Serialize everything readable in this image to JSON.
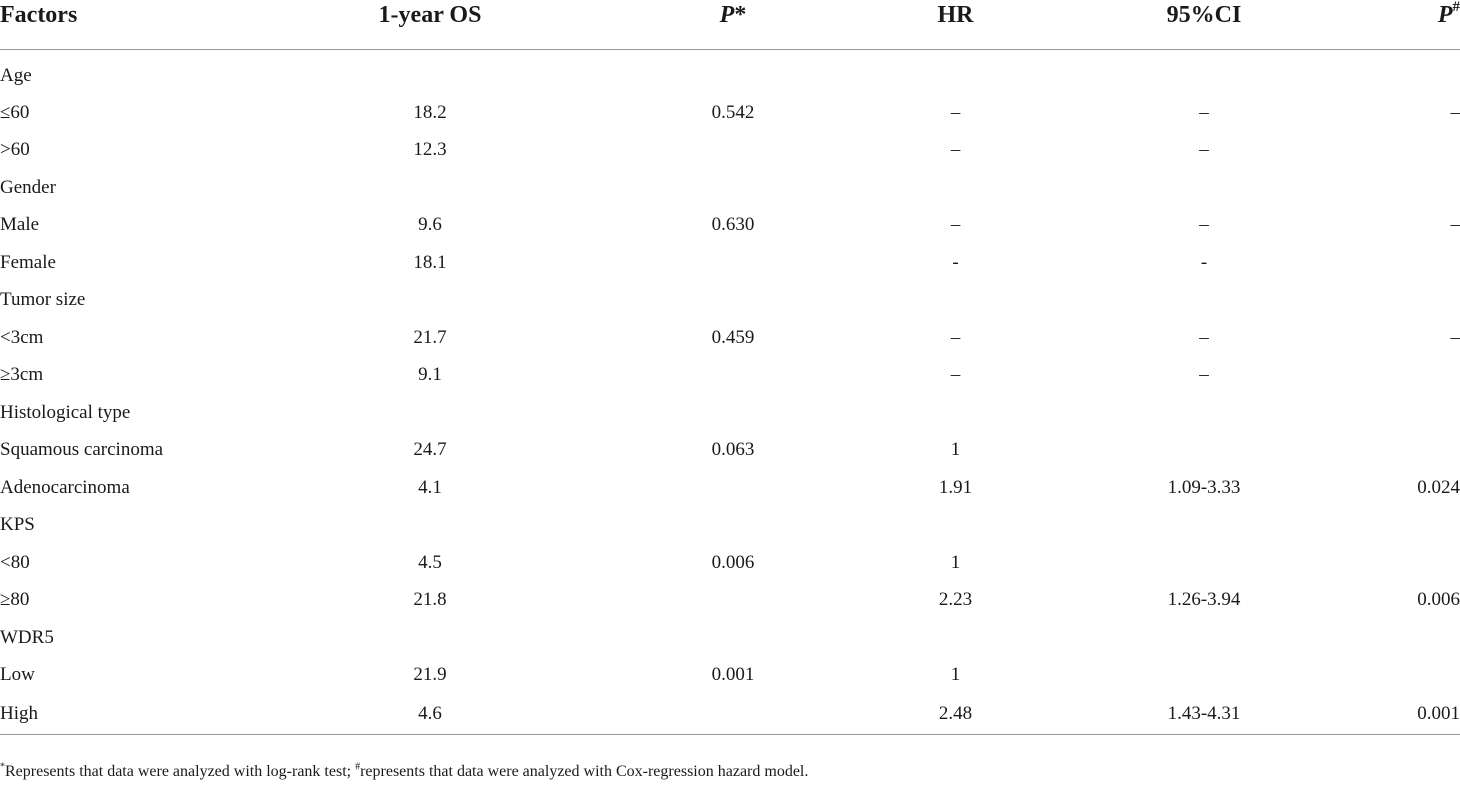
{
  "table": {
    "headers": {
      "factors": "Factors",
      "os": "1-year OS",
      "p_star_letter": "P",
      "p_star_mark": "*",
      "hr": "HR",
      "ci": "95%CI",
      "p_hash_letter": "P",
      "p_hash_mark": "#"
    },
    "rows": [
      {
        "factor": "Age",
        "os": "",
        "p": "",
        "hr": "",
        "ci": "",
        "p2": ""
      },
      {
        "factor": "≤60",
        "os": "18.2",
        "p": "0.542",
        "hr": "–",
        "ci": "–",
        "p2": "–"
      },
      {
        "factor": ">60",
        "os": "12.3",
        "p": "",
        "hr": "–",
        "ci": "–",
        "p2": ""
      },
      {
        "factor": "Gender",
        "os": "",
        "p": "",
        "hr": "",
        "ci": "",
        "p2": ""
      },
      {
        "factor": "Male",
        "os": "9.6",
        "p": "0.630",
        "hr": "–",
        "ci": "–",
        "p2": "–"
      },
      {
        "factor": "Female",
        "os": "18.1",
        "p": "",
        "hr": "-",
        "ci": "-",
        "p2": ""
      },
      {
        "factor": "Tumor size",
        "os": "",
        "p": "",
        "hr": "",
        "ci": "",
        "p2": ""
      },
      {
        "factor": "<3cm",
        "os": "21.7",
        "p": "0.459",
        "hr": "–",
        "ci": "–",
        "p2": "–"
      },
      {
        "factor": "≥3cm",
        "os": "9.1",
        "p": "",
        "hr": "–",
        "ci": "–",
        "p2": ""
      },
      {
        "factor": "Histological type",
        "os": "",
        "p": "",
        "hr": "",
        "ci": "",
        "p2": ""
      },
      {
        "factor": "Squamous carcinoma",
        "os": "24.7",
        "p": "0.063",
        "hr": "1",
        "ci": "",
        "p2": ""
      },
      {
        "factor": "Adenocarcinoma",
        "os": "4.1",
        "p": "",
        "hr": "1.91",
        "ci": "1.09-3.33",
        "p2": "0.024"
      },
      {
        "factor": "KPS",
        "os": "",
        "p": "",
        "hr": "",
        "ci": "",
        "p2": ""
      },
      {
        "factor": "<80",
        "os": "4.5",
        "p": "0.006",
        "hr": "1",
        "ci": "",
        "p2": ""
      },
      {
        "factor": "≥80",
        "os": "21.8",
        "p": "",
        "hr": "2.23",
        "ci": "1.26-3.94",
        "p2": "0.006"
      },
      {
        "factor": "WDR5",
        "os": "",
        "p": "",
        "hr": "",
        "ci": "",
        "p2": ""
      },
      {
        "factor": "Low",
        "os": "21.9",
        "p": "0.001",
        "hr": "1",
        "ci": "",
        "p2": ""
      },
      {
        "factor": "High",
        "os": "4.6",
        "p": "",
        "hr": "2.48",
        "ci": "1.43-4.31",
        "p2": "0.001"
      }
    ]
  },
  "footnote": {
    "star": "*",
    "part1": "Represents that data were analyzed with log-rank test; ",
    "hash": "#",
    "part2": "represents that data were analyzed with Cox-regression hazard model."
  }
}
